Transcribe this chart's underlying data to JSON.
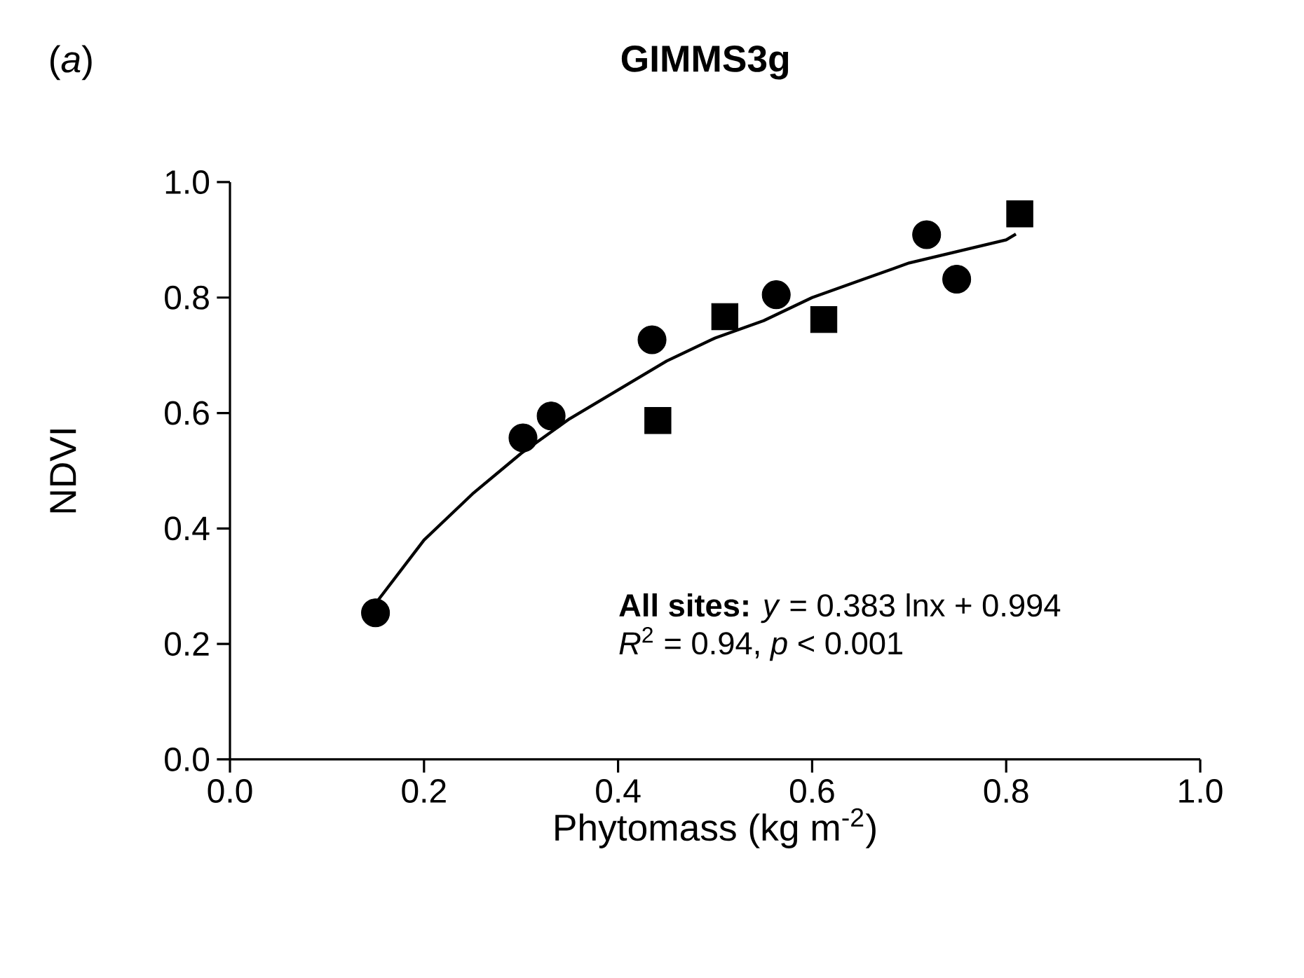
{
  "chart_data": {
    "type": "scatter",
    "title": "GIMMS3g",
    "xlabel": "Phytomass (kg m$^{-2}$)",
    "ylabel": "NDVI",
    "xlim": [
      0,
      1
    ],
    "ylim": [
      0,
      1
    ],
    "xticks": [
      {
        "value": 0,
        "label": "0.0"
      },
      0.2,
      0.4,
      0.6,
      0.8,
      {
        "value": 1,
        "label": "1.0"
      }
    ],
    "yticks": [
      {
        "value": 0,
        "label": "0.0"
      },
      0.2,
      0.4,
      0.6,
      0.8,
      {
        "value": 1,
        "label": "1.0"
      }
    ],
    "grid": false,
    "legend": false,
    "annotations": [
      "(*a*)",
      "**All sites:** *y* = 0.383 lnx + 0.994",
      "*R*$^{2}$ = 0.94, *p* < 0.001"
    ],
    "series": [
      {
        "marker": "circle",
        "color": "#000000",
        "x": [
          0.15,
          0.302,
          0.331,
          0.435,
          0.563,
          0.718,
          0.749
        ],
        "values": [
          0.254,
          0.557,
          0.595,
          0.727,
          0.805,
          0.909,
          0.832
        ]
      },
      {
        "marker": "square",
        "color": "#000000",
        "x": [
          0.441,
          0.51,
          0.612,
          0.814
        ],
        "values": [
          0.587,
          0.767,
          0.762,
          0.945
        ]
      },
      {
        "type": "line",
        "marker": "none",
        "line_style": "solid",
        "color": "#000000",
        "x": [
          0.15,
          0.2,
          0.25,
          0.3,
          0.35,
          0.4,
          0.45,
          0.5,
          0.55,
          0.6,
          0.65,
          0.7,
          0.75,
          0.8,
          0.81
        ],
        "values": [
          0.27,
          0.38,
          0.46,
          0.53,
          0.59,
          0.64,
          0.69,
          0.73,
          0.76,
          0.8,
          0.83,
          0.86,
          0.88,
          0.9,
          0.91
        ]
      }
    ]
  }
}
